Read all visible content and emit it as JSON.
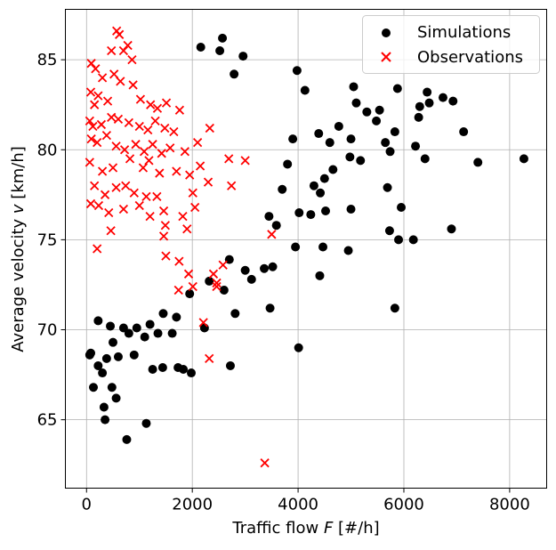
{
  "chart_data": {
    "type": "scatter",
    "title": "",
    "xlabel": {
      "prefix": "Traffic flow ",
      "var": "F",
      "suffix": " [#/h]"
    },
    "ylabel": {
      "prefix": "Average velocity ",
      "var": "v",
      "suffix": " [km/h]"
    },
    "xlim": [
      -400,
      8700
    ],
    "ylim": [
      61.2,
      87.8
    ],
    "x_ticks": [
      0,
      2000,
      4000,
      6000,
      8000
    ],
    "y_ticks": [
      65,
      70,
      75,
      80,
      85
    ],
    "grid": true,
    "legend_position": "top-right",
    "series": [
      {
        "name": "Simulations",
        "marker": "circle",
        "color": "#000000",
        "points": [
          [
            80,
            68.7
          ],
          [
            60,
            68.6
          ],
          [
            220,
            68.0
          ],
          [
            130,
            66.8
          ],
          [
            330,
            65.7
          ],
          [
            350,
            65.0
          ],
          [
            480,
            66.8
          ],
          [
            560,
            66.2
          ],
          [
            760,
            63.9
          ],
          [
            1130,
            64.8
          ],
          [
            1440,
            67.9
          ],
          [
            1250,
            67.8
          ],
          [
            1730,
            67.9
          ],
          [
            1830,
            67.8
          ],
          [
            1980,
            67.6
          ],
          [
            2230,
            70.1
          ],
          [
            2720,
            68.0
          ],
          [
            2810,
            70.9
          ],
          [
            3120,
            72.8
          ],
          [
            3470,
            71.2
          ],
          [
            3360,
            73.4
          ],
          [
            3520,
            73.5
          ],
          [
            4010,
            69.0
          ],
          [
            4410,
            73.0
          ],
          [
            3950,
            74.6
          ],
          [
            4470,
            74.6
          ],
          [
            4950,
            74.4
          ],
          [
            5000,
            76.7
          ],
          [
            4520,
            76.6
          ],
          [
            5730,
            75.5
          ],
          [
            5830,
            71.2
          ],
          [
            5950,
            76.8
          ],
          [
            5900,
            75.0
          ],
          [
            6180,
            75.0
          ],
          [
            6900,
            75.6
          ],
          [
            7400,
            79.3
          ],
          [
            8270,
            79.5
          ],
          [
            7130,
            81.0
          ],
          [
            6930,
            82.7
          ],
          [
            6740,
            82.9
          ],
          [
            6480,
            82.6
          ],
          [
            6440,
            83.2
          ],
          [
            6300,
            82.4
          ],
          [
            6280,
            81.8
          ],
          [
            6220,
            80.2
          ],
          [
            6400,
            79.5
          ],
          [
            5880,
            83.4
          ],
          [
            5830,
            81.0
          ],
          [
            5740,
            79.9
          ],
          [
            5650,
            80.4
          ],
          [
            5540,
            82.2
          ],
          [
            5480,
            81.6
          ],
          [
            5300,
            82.1
          ],
          [
            5050,
            83.5
          ],
          [
            5100,
            82.6
          ],
          [
            5000,
            80.6
          ],
          [
            4980,
            79.6
          ],
          [
            5180,
            79.4
          ],
          [
            4770,
            81.3
          ],
          [
            4600,
            80.4
          ],
          [
            4660,
            78.9
          ],
          [
            4500,
            78.4
          ],
          [
            4390,
            80.9
          ],
          [
            4420,
            77.6
          ],
          [
            4300,
            78.0
          ],
          [
            4240,
            76.4
          ],
          [
            4020,
            76.5
          ],
          [
            3980,
            84.4
          ],
          [
            4130,
            83.3
          ],
          [
            3900,
            80.6
          ],
          [
            3700,
            77.8
          ],
          [
            3800,
            79.2
          ],
          [
            5690,
            77.9
          ],
          [
            3590,
            75.8
          ],
          [
            3450,
            76.3
          ],
          [
            2960,
            85.2
          ],
          [
            2790,
            84.2
          ],
          [
            2570,
            86.2
          ],
          [
            2160,
            85.7
          ],
          [
            2520,
            85.5
          ],
          [
            3000,
            73.3
          ],
          [
            2700,
            73.9
          ],
          [
            2600,
            72.2
          ],
          [
            2320,
            72.7
          ],
          [
            1950,
            72.0
          ],
          [
            1700,
            70.7
          ],
          [
            1450,
            70.9
          ],
          [
            1200,
            70.3
          ],
          [
            950,
            70.1
          ],
          [
            700,
            70.1
          ],
          [
            450,
            70.2
          ],
          [
            220,
            70.5
          ],
          [
            500,
            69.3
          ],
          [
            800,
            69.8
          ],
          [
            1100,
            69.6
          ],
          [
            1350,
            69.8
          ],
          [
            1620,
            69.8
          ],
          [
            900,
            68.6
          ],
          [
            600,
            68.5
          ],
          [
            380,
            68.4
          ],
          [
            300,
            67.6
          ]
        ]
      },
      {
        "name": "Observations",
        "marker": "x",
        "color": "#ff0000",
        "points": [
          [
            570,
            86.6
          ],
          [
            620,
            86.4
          ],
          [
            780,
            85.8
          ],
          [
            700,
            85.5
          ],
          [
            470,
            85.5
          ],
          [
            860,
            85.0
          ],
          [
            90,
            84.8
          ],
          [
            170,
            84.5
          ],
          [
            300,
            84.0
          ],
          [
            520,
            84.2
          ],
          [
            640,
            83.8
          ],
          [
            880,
            83.6
          ],
          [
            80,
            83.2
          ],
          [
            220,
            83.0
          ],
          [
            400,
            82.7
          ],
          [
            150,
            82.5
          ],
          [
            1020,
            82.8
          ],
          [
            1210,
            82.5
          ],
          [
            1340,
            82.3
          ],
          [
            1510,
            82.6
          ],
          [
            1760,
            82.2
          ],
          [
            60,
            81.6
          ],
          [
            120,
            81.3
          ],
          [
            280,
            81.4
          ],
          [
            470,
            81.8
          ],
          [
            600,
            81.7
          ],
          [
            800,
            81.5
          ],
          [
            1000,
            81.3
          ],
          [
            1160,
            81.1
          ],
          [
            1300,
            81.6
          ],
          [
            1480,
            81.2
          ],
          [
            1650,
            81.0
          ],
          [
            2330,
            81.2
          ],
          [
            90,
            80.6
          ],
          [
            200,
            80.4
          ],
          [
            380,
            80.8
          ],
          [
            560,
            80.2
          ],
          [
            720,
            80.0
          ],
          [
            930,
            80.3
          ],
          [
            1090,
            79.9
          ],
          [
            1250,
            80.3
          ],
          [
            1420,
            79.8
          ],
          [
            1580,
            80.1
          ],
          [
            1860,
            79.9
          ],
          [
            2100,
            80.4
          ],
          [
            60,
            79.3
          ],
          [
            300,
            78.8
          ],
          [
            500,
            79.0
          ],
          [
            820,
            79.5
          ],
          [
            1070,
            79.0
          ],
          [
            1180,
            79.4
          ],
          [
            1380,
            78.7
          ],
          [
            1700,
            78.8
          ],
          [
            1950,
            78.6
          ],
          [
            2150,
            79.1
          ],
          [
            2690,
            79.5
          ],
          [
            3000,
            79.4
          ],
          [
            150,
            78.0
          ],
          [
            350,
            77.5
          ],
          [
            560,
            77.9
          ],
          [
            740,
            78.0
          ],
          [
            900,
            77.6
          ],
          [
            1130,
            77.4
          ],
          [
            1330,
            77.4
          ],
          [
            2010,
            77.6
          ],
          [
            2300,
            78.2
          ],
          [
            2740,
            78.0
          ],
          [
            80,
            77.0
          ],
          [
            230,
            76.9
          ],
          [
            420,
            76.5
          ],
          [
            700,
            76.7
          ],
          [
            1000,
            76.9
          ],
          [
            1200,
            76.3
          ],
          [
            1460,
            76.6
          ],
          [
            1820,
            76.3
          ],
          [
            2050,
            76.8
          ],
          [
            1490,
            75.8
          ],
          [
            1900,
            75.6
          ],
          [
            460,
            75.5
          ],
          [
            1460,
            75.2
          ],
          [
            200,
            74.5
          ],
          [
            1500,
            74.1
          ],
          [
            1750,
            73.8
          ],
          [
            2580,
            73.6
          ],
          [
            2400,
            73.1
          ],
          [
            3500,
            75.3
          ],
          [
            1930,
            73.1
          ],
          [
            1740,
            72.2
          ],
          [
            2010,
            72.4
          ],
          [
            2460,
            72.4
          ],
          [
            2460,
            72.6
          ],
          [
            2210,
            70.4
          ],
          [
            2320,
            68.4
          ],
          [
            3370,
            62.6
          ]
        ]
      }
    ]
  }
}
